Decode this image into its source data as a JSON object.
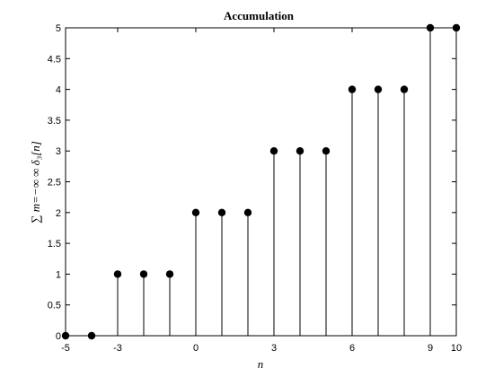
{
  "chart_data": {
    "type": "stem",
    "title": "Accumulation",
    "xlabel": "n",
    "ylabel": "∑ₙₘ₌₋∞∞ δ₃[n]",
    "ylabel_display": "∑ m=−∞ ∞  δ₃[n]",
    "xlim": [
      -5,
      10
    ],
    "ylim": [
      0,
      5
    ],
    "xticks": [
      -5,
      -3,
      0,
      3,
      6,
      9,
      10
    ],
    "yticks": [
      0,
      0.5,
      1,
      1.5,
      2,
      2.5,
      3,
      3.5,
      4,
      4.5,
      5
    ],
    "x": [
      -5,
      -4,
      -3,
      -2,
      -1,
      0,
      1,
      2,
      3,
      4,
      5,
      6,
      7,
      8,
      9,
      10
    ],
    "y": [
      0,
      0,
      1,
      1,
      1,
      2,
      2,
      2,
      3,
      3,
      3,
      4,
      4,
      4,
      5,
      5
    ],
    "grid": false,
    "color": "#000000"
  }
}
